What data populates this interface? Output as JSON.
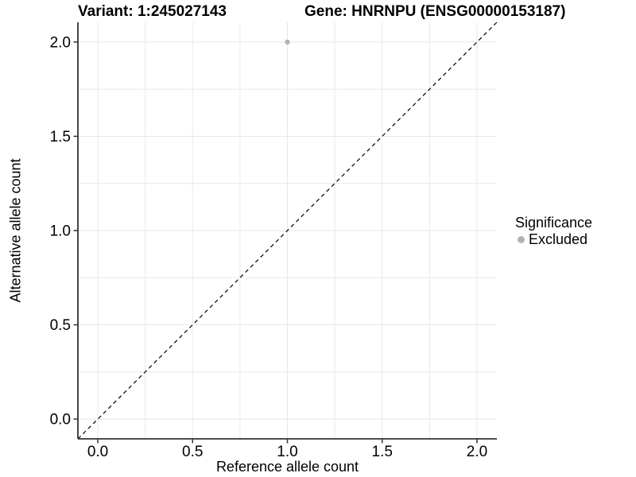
{
  "chart_data": {
    "type": "scatter",
    "title_left": "Variant: 1:245027143",
    "title_right": "Gene: HNRNPU (ENSG00000153187)",
    "xlabel": "Reference allele count",
    "ylabel": "Alternative allele count",
    "xlim": [
      -0.105,
      2.105
    ],
    "ylim": [
      -0.105,
      2.105
    ],
    "x_ticks": [
      0.0,
      0.5,
      1.0,
      1.5,
      2.0
    ],
    "y_ticks": [
      0.0,
      0.5,
      1.0,
      1.5,
      2.0
    ],
    "grid_interval": 0.25,
    "grid_on": true,
    "identity_line": {
      "slope": 1,
      "intercept": 0,
      "style": "dashed"
    },
    "series": [
      {
        "name": "Excluded",
        "color": "#b4b4b4",
        "points": [
          {
            "x": 1.0,
            "y": 2.0
          }
        ]
      }
    ],
    "legend": {
      "position": "right",
      "title": "Significance",
      "items": [
        {
          "label": "Excluded",
          "color": "#b4b4b4",
          "icon": "point-icon"
        }
      ]
    }
  },
  "colors": {
    "background": "#ffffff",
    "grid": "#e8e8e8",
    "axis": "#333333",
    "tick_label": "#000000",
    "identity_line": "#000000",
    "point": "#b4b4b4"
  }
}
